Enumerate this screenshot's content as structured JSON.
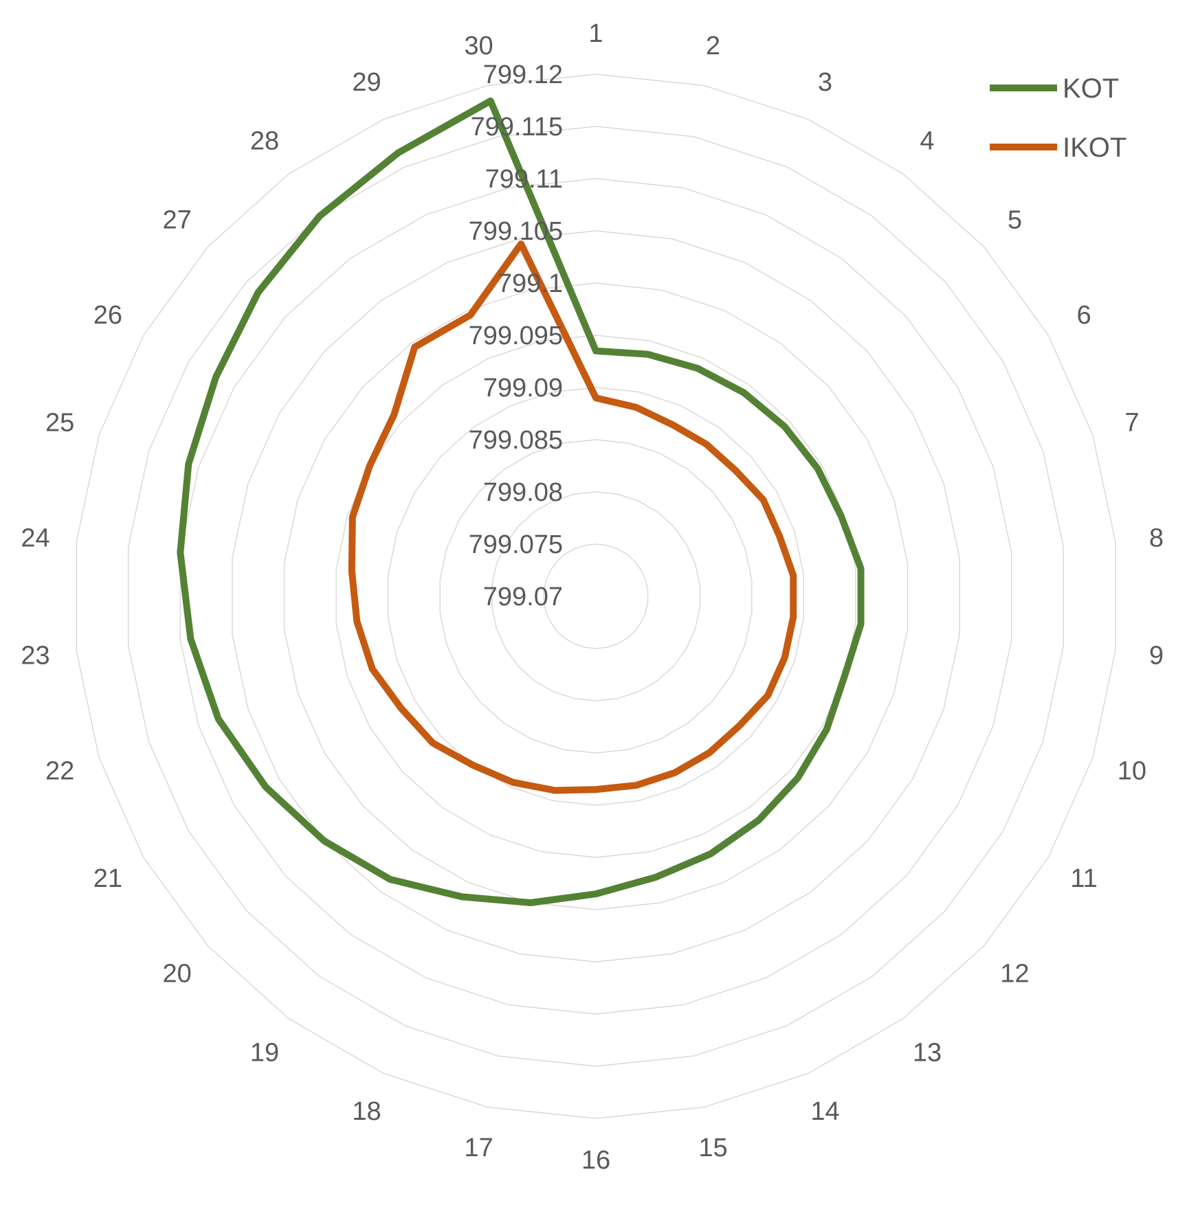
{
  "chart_data": {
    "type": "radar",
    "categories": [
      "1",
      "2",
      "3",
      "4",
      "5",
      "6",
      "7",
      "8",
      "9",
      "10",
      "11",
      "12",
      "13",
      "14",
      "15",
      "16",
      "17",
      "18",
      "19",
      "20",
      "21",
      "22",
      "23",
      "24",
      "25",
      "26",
      "27",
      "28",
      "29",
      "30"
    ],
    "radial_ticks": [
      "799.07",
      "799.075",
      "799.08",
      "799.085",
      "799.09",
      "799.095",
      "799.1",
      "799.105",
      "799.11",
      "799.115",
      "799.12"
    ],
    "rlim": [
      799.07,
      799.12
    ],
    "grid": true,
    "legend_position": "top-right",
    "series": [
      {
        "name": "KOT",
        "color": "#548235",
        "values": [
          799.0935,
          799.0937,
          799.0939,
          799.0941,
          799.0943,
          799.0945,
          799.0947,
          799.0955,
          799.0955,
          799.095,
          799.0955,
          799.096,
          799.0965,
          799.097,
          799.0975,
          799.0985,
          799.1,
          799.1015,
          799.1035,
          799.105,
          799.1065,
          799.108,
          799.109,
          799.11,
          799.111,
          799.112,
          799.1135,
          799.115,
          799.1165,
          799.1185
        ]
      },
      {
        "name": "IKOT",
        "color": "#c55a11",
        "values": [
          799.089,
          799.0885,
          799.088,
          799.088,
          799.088,
          799.0885,
          799.0885,
          799.089,
          799.089,
          799.089,
          799.089,
          799.0885,
          799.0885,
          799.0885,
          799.0885,
          799.0885,
          799.089,
          799.0895,
          799.09,
          799.091,
          799.0915,
          799.0925,
          799.093,
          799.0935,
          799.0945,
          799.095,
          799.096,
          799.0995,
          799.0995,
          799.1045
        ]
      }
    ]
  }
}
